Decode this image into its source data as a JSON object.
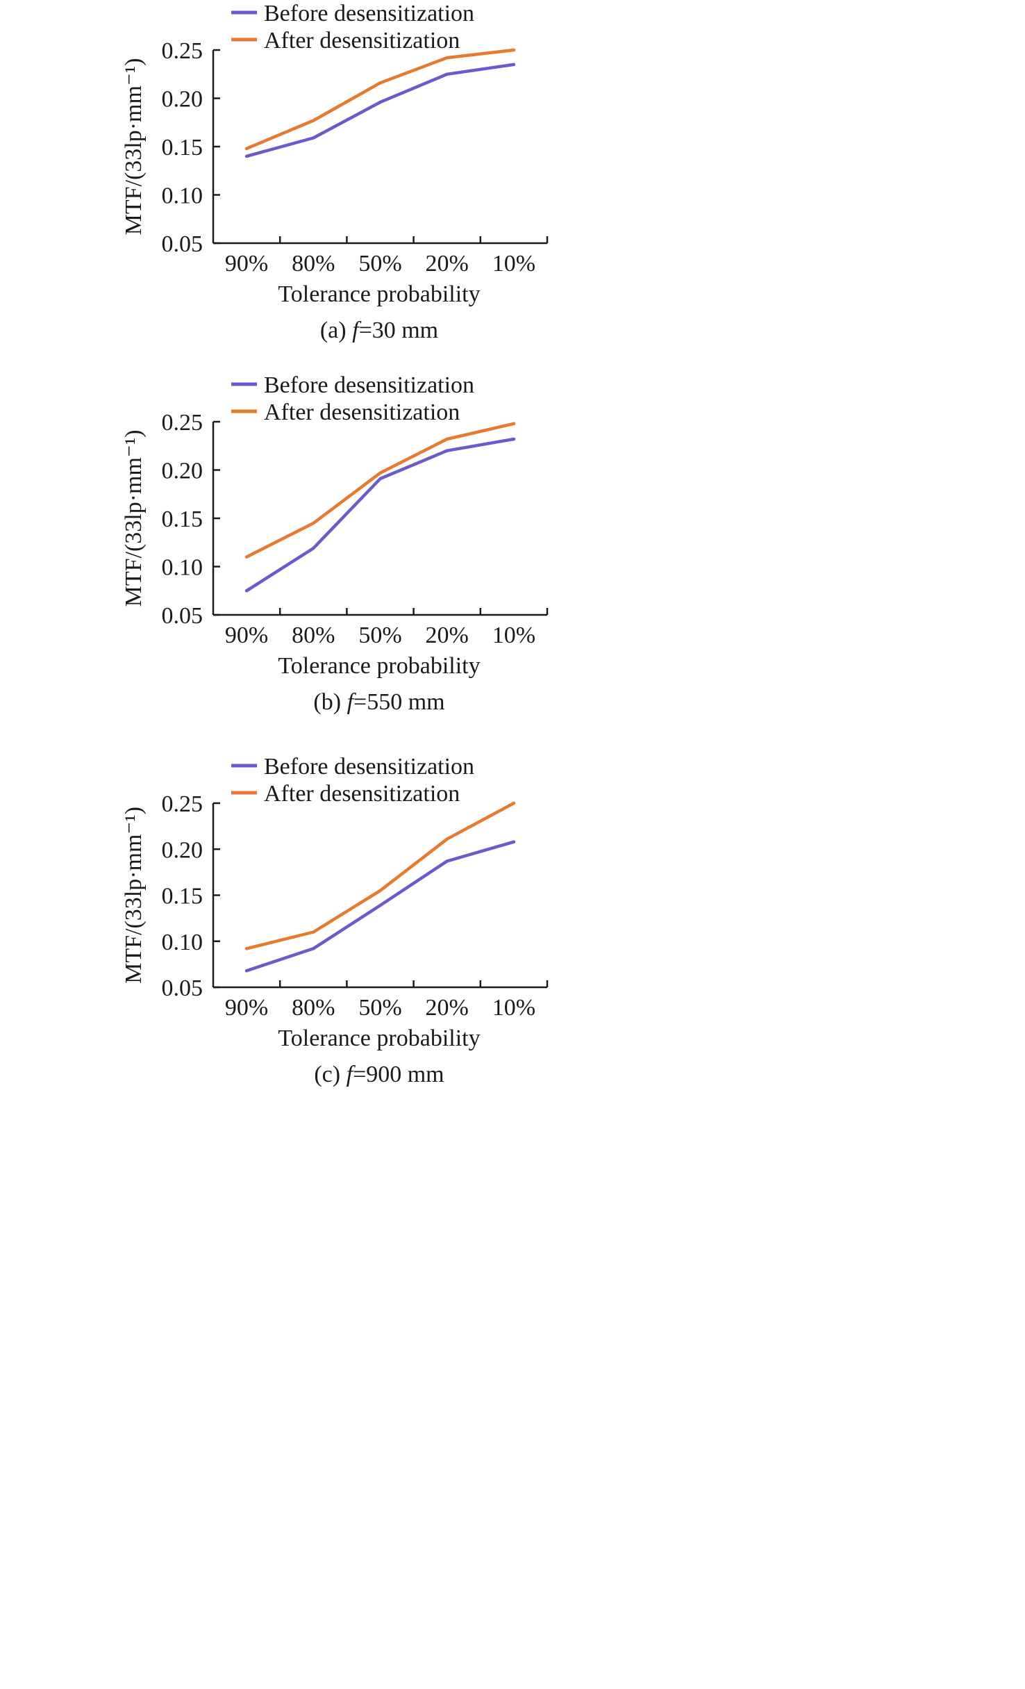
{
  "chart_data": [
    {
      "type": "line",
      "caption": "(a) f=30 mm",
      "caption_prefix": "(a) ",
      "caption_var": "f",
      "caption_suffix": "=30 mm",
      "xlabel": "Tolerance probability",
      "ylabel": "MTF/(33lp·mm⁻¹)",
      "categories": [
        "90%",
        "80%",
        "50%",
        "20%",
        "10%"
      ],
      "ylim": [
        0.05,
        0.25
      ],
      "yticks": [
        "0.05",
        "0.10",
        "0.15",
        "0.20",
        "0.25"
      ],
      "legend_position": "top",
      "grid": false,
      "series": [
        {
          "name": "Before desensitization",
          "color": "#6a5acd",
          "values": [
            0.14,
            0.159,
            0.196,
            0.225,
            0.235
          ]
        },
        {
          "name": "After desensitization",
          "color": "#e87a30",
          "values": [
            0.148,
            0.177,
            0.216,
            0.242,
            0.25
          ]
        }
      ]
    },
    {
      "type": "line",
      "caption": "(b) f=550 mm",
      "caption_prefix": "(b) ",
      "caption_var": "f",
      "caption_suffix": "=550 mm",
      "xlabel": "Tolerance probability",
      "ylabel": "MTF/(33lp·mm⁻¹)",
      "categories": [
        "90%",
        "80%",
        "50%",
        "20%",
        "10%"
      ],
      "ylim": [
        0.05,
        0.25
      ],
      "yticks": [
        "0.05",
        "0.10",
        "0.15",
        "0.20",
        "0.25"
      ],
      "legend_position": "top",
      "grid": false,
      "series": [
        {
          "name": "Before desensitization",
          "color": "#6a5acd",
          "values": [
            0.075,
            0.119,
            0.191,
            0.22,
            0.232
          ]
        },
        {
          "name": "After desensitization",
          "color": "#e87a30",
          "values": [
            0.11,
            0.145,
            0.197,
            0.232,
            0.248
          ]
        }
      ]
    },
    {
      "type": "line",
      "caption": "(c) f=900 mm",
      "caption_prefix": "(c) ",
      "caption_var": "f",
      "caption_suffix": "=900 mm",
      "xlabel": "Tolerance probability",
      "ylabel": "MTF/(33lp·mm⁻¹)",
      "categories": [
        "90%",
        "80%",
        "50%",
        "20%",
        "10%"
      ],
      "ylim": [
        0.05,
        0.25
      ],
      "yticks": [
        "0.05",
        "0.10",
        "0.15",
        "0.20",
        "0.25"
      ],
      "legend_position": "top",
      "grid": false,
      "series": [
        {
          "name": "Before desensitization",
          "color": "#6a5acd",
          "values": [
            0.068,
            0.092,
            0.139,
            0.187,
            0.208
          ]
        },
        {
          "name": "After desensitization",
          "color": "#e87a30",
          "values": [
            0.092,
            0.11,
            0.155,
            0.211,
            0.25
          ]
        }
      ]
    }
  ]
}
